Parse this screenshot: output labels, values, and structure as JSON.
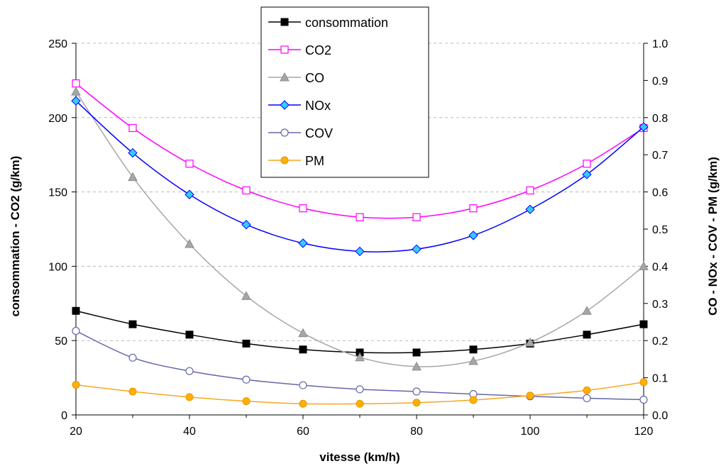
{
  "chart_data": {
    "type": "line",
    "title": "",
    "xlabel": "vitesse (km/h)",
    "ylabel": "consommation - CO2 (g/km)",
    "y2label": "CO - NOx - COV - PM (g/km)",
    "xlim": [
      20,
      120
    ],
    "ylim": [
      0,
      250
    ],
    "y2lim": [
      0,
      1.0
    ],
    "xticks": [
      "20",
      "40",
      "60",
      "80",
      "100",
      "120"
    ],
    "yticks": [
      "0",
      "50",
      "100",
      "150",
      "200",
      "250"
    ],
    "y2ticks": [
      "0.0",
      "0.1",
      "0.2",
      "0.3",
      "0.4",
      "0.5",
      "0.6",
      "0.7",
      "0.8",
      "0.9",
      "1.0"
    ],
    "grid": "horizontal dashed",
    "legend_position": "top-center",
    "series": [
      {
        "name": "consommation",
        "axis": "left",
        "color": "#000000",
        "marker": "square-filled",
        "x": [
          20,
          30,
          40,
          50,
          60,
          70,
          80,
          90,
          100,
          110,
          120
        ],
        "values": [
          70,
          61,
          54,
          48,
          44,
          42,
          42,
          44,
          48,
          54,
          61
        ]
      },
      {
        "name": "CO2",
        "axis": "left",
        "color": "#ff00ff",
        "marker": "square-open",
        "x": [
          20,
          30,
          40,
          50,
          60,
          70,
          80,
          90,
          100,
          110,
          120
        ],
        "values": [
          223,
          193,
          169,
          151,
          139,
          133,
          133,
          139,
          151,
          169,
          193
        ]
      },
      {
        "name": "CO",
        "axis": "right",
        "color": "#a6a6a6",
        "marker": "triangle",
        "x": [
          20,
          30,
          40,
          50,
          60,
          70,
          80,
          90,
          100,
          110,
          120
        ],
        "values": [
          0.87,
          0.64,
          0.46,
          0.32,
          0.22,
          0.155,
          0.13,
          0.145,
          0.195,
          0.28,
          0.4
        ]
      },
      {
        "name": "NOx",
        "axis": "right",
        "color": "#0000ff",
        "marker": "diamond",
        "x": [
          20,
          30,
          40,
          50,
          60,
          70,
          80,
          90,
          100,
          110,
          120
        ],
        "values": [
          0.845,
          0.705,
          0.593,
          0.512,
          0.462,
          0.44,
          0.446,
          0.483,
          0.553,
          0.647,
          0.775
        ]
      },
      {
        "name": "COV",
        "axis": "right",
        "color": "#6666aa",
        "marker": "circle-open",
        "x": [
          20,
          30,
          40,
          50,
          60,
          70,
          80,
          90,
          100,
          110,
          120
        ],
        "values": [
          0.226,
          0.154,
          0.118,
          0.095,
          0.08,
          0.069,
          0.063,
          0.056,
          0.05,
          0.045,
          0.041
        ]
      },
      {
        "name": "PM",
        "axis": "right",
        "color": "#f5a623",
        "marker": "circle-filled",
        "x": [
          20,
          30,
          40,
          50,
          60,
          70,
          80,
          90,
          100,
          110,
          120
        ],
        "values": [
          0.081,
          0.063,
          0.048,
          0.037,
          0.03,
          0.03,
          0.033,
          0.04,
          0.052,
          0.066,
          0.088
        ]
      }
    ]
  }
}
